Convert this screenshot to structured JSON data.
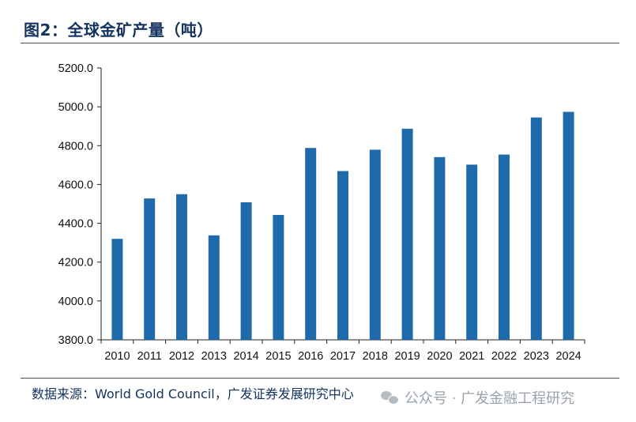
{
  "title": "图2：全球金矿产量（吨）",
  "source": "数据来源：World Gold Council，广发证券发展研究中心",
  "watermark": "公众号 · 广发金融工程研究",
  "watermark_icon": "wechat-icon",
  "colors": {
    "bar": "#1f6aab",
    "title": "#14335e",
    "axis": "#222222"
  },
  "chart_data": {
    "type": "bar",
    "categories": [
      "2010",
      "2011",
      "2012",
      "2013",
      "2014",
      "2015",
      "2016",
      "2017",
      "2018",
      "2019",
      "2020",
      "2021",
      "2022",
      "2023",
      "2024"
    ],
    "values": [
      4320,
      4528,
      4550,
      4338,
      4508,
      4443,
      4788,
      4669,
      4779,
      4887,
      4741,
      4702,
      4754,
      4945,
      4974
    ],
    "title": "图2：全球金矿产量（吨）",
    "xlabel": "",
    "ylabel": "",
    "ylim": [
      3800,
      5200
    ],
    "yticks": [
      "3800.0",
      "4000.0",
      "4200.0",
      "4400.0",
      "4600.0",
      "4800.0",
      "5000.0",
      "5200.0"
    ],
    "grid": false,
    "legend": "none"
  }
}
